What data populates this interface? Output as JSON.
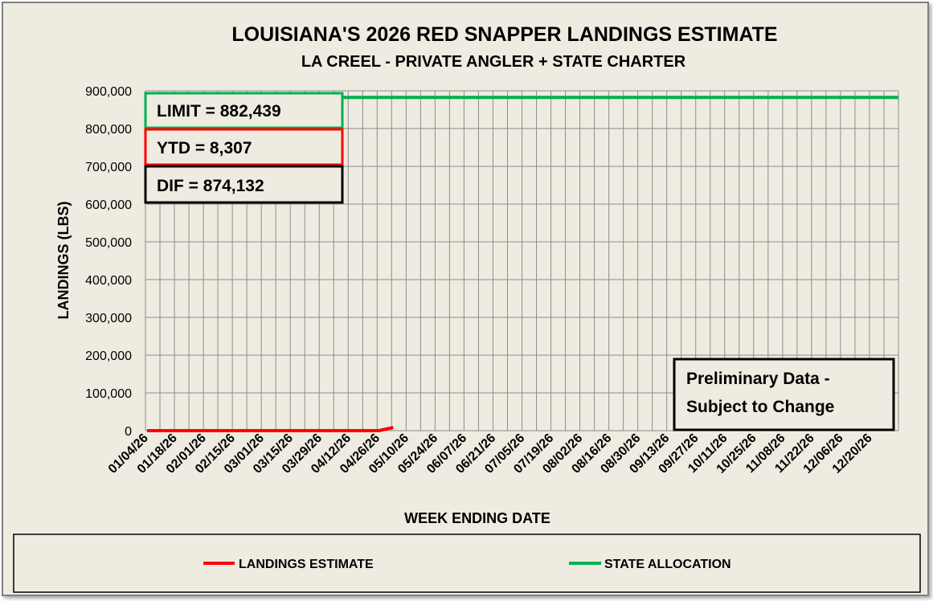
{
  "chart_data": {
    "type": "line",
    "title": "LOUISIANA'S 2026 RED SNAPPER LANDINGS ESTIMATE",
    "subtitle": "LA CREEL - PRIVATE ANGLER + STATE CHARTER",
    "xlabel": "WEEK ENDING DATE",
    "ylabel": "LANDINGS (LBS)",
    "ylim": [
      0,
      900000
    ],
    "y_ticks": [
      0,
      100000,
      200000,
      300000,
      400000,
      500000,
      600000,
      700000,
      800000,
      900000
    ],
    "y_tick_labels": [
      "0",
      "100,000",
      "200,000",
      "300,000",
      "400,000",
      "500,000",
      "600,000",
      "700,000",
      "800,000",
      "900,000"
    ],
    "x_tick_labels": [
      "01/04/26",
      "01/18/26",
      "02/01/26",
      "02/15/26",
      "03/01/26",
      "03/15/26",
      "03/29/26",
      "04/12/26",
      "04/26/26",
      "05/10/26",
      "05/24/26",
      "06/07/26",
      "06/21/26",
      "07/05/26",
      "07/19/26",
      "08/02/26",
      "08/16/26",
      "08/30/26",
      "09/13/26",
      "09/27/26",
      "10/11/26",
      "10/25/26",
      "11/08/26",
      "11/22/26",
      "12/06/26",
      "12/20/26"
    ],
    "weeks_count": 52,
    "series": [
      {
        "name": "LANDINGS ESTIMATE",
        "color": "#ff0000",
        "x": [
          "01/04/26",
          "01/11/26",
          "01/18/26",
          "01/25/26",
          "02/01/26",
          "02/08/26",
          "02/15/26",
          "02/22/26",
          "03/01/26",
          "03/08/26",
          "03/15/26",
          "03/22/26",
          "03/29/26",
          "04/05/26",
          "04/12/26",
          "04/19/26",
          "04/26/26",
          "05/03/26"
        ],
        "values": [
          0,
          0,
          0,
          0,
          0,
          0,
          0,
          0,
          0,
          0,
          0,
          0,
          0,
          0,
          0,
          0,
          0,
          8307
        ]
      },
      {
        "name": "STATE ALLOCATION",
        "color": "#00b050",
        "x": [
          "01/04/26",
          "12/27/26"
        ],
        "values": [
          882439,
          882439
        ]
      }
    ],
    "grid": true,
    "legend_position": "bottom"
  },
  "boxes": {
    "limit": "LIMIT = 882,439",
    "ytd": "YTD = 8,307",
    "dif": "DIF = 874,132",
    "note_line1": "Preliminary Data -",
    "note_line2": "Subject to Change"
  },
  "colors": {
    "background": "#eeece1",
    "plot_background": "#eeece1",
    "grid": "#808080",
    "limit_border": "#00b050",
    "ytd_border": "#ff0000",
    "dif_border": "#000000"
  }
}
